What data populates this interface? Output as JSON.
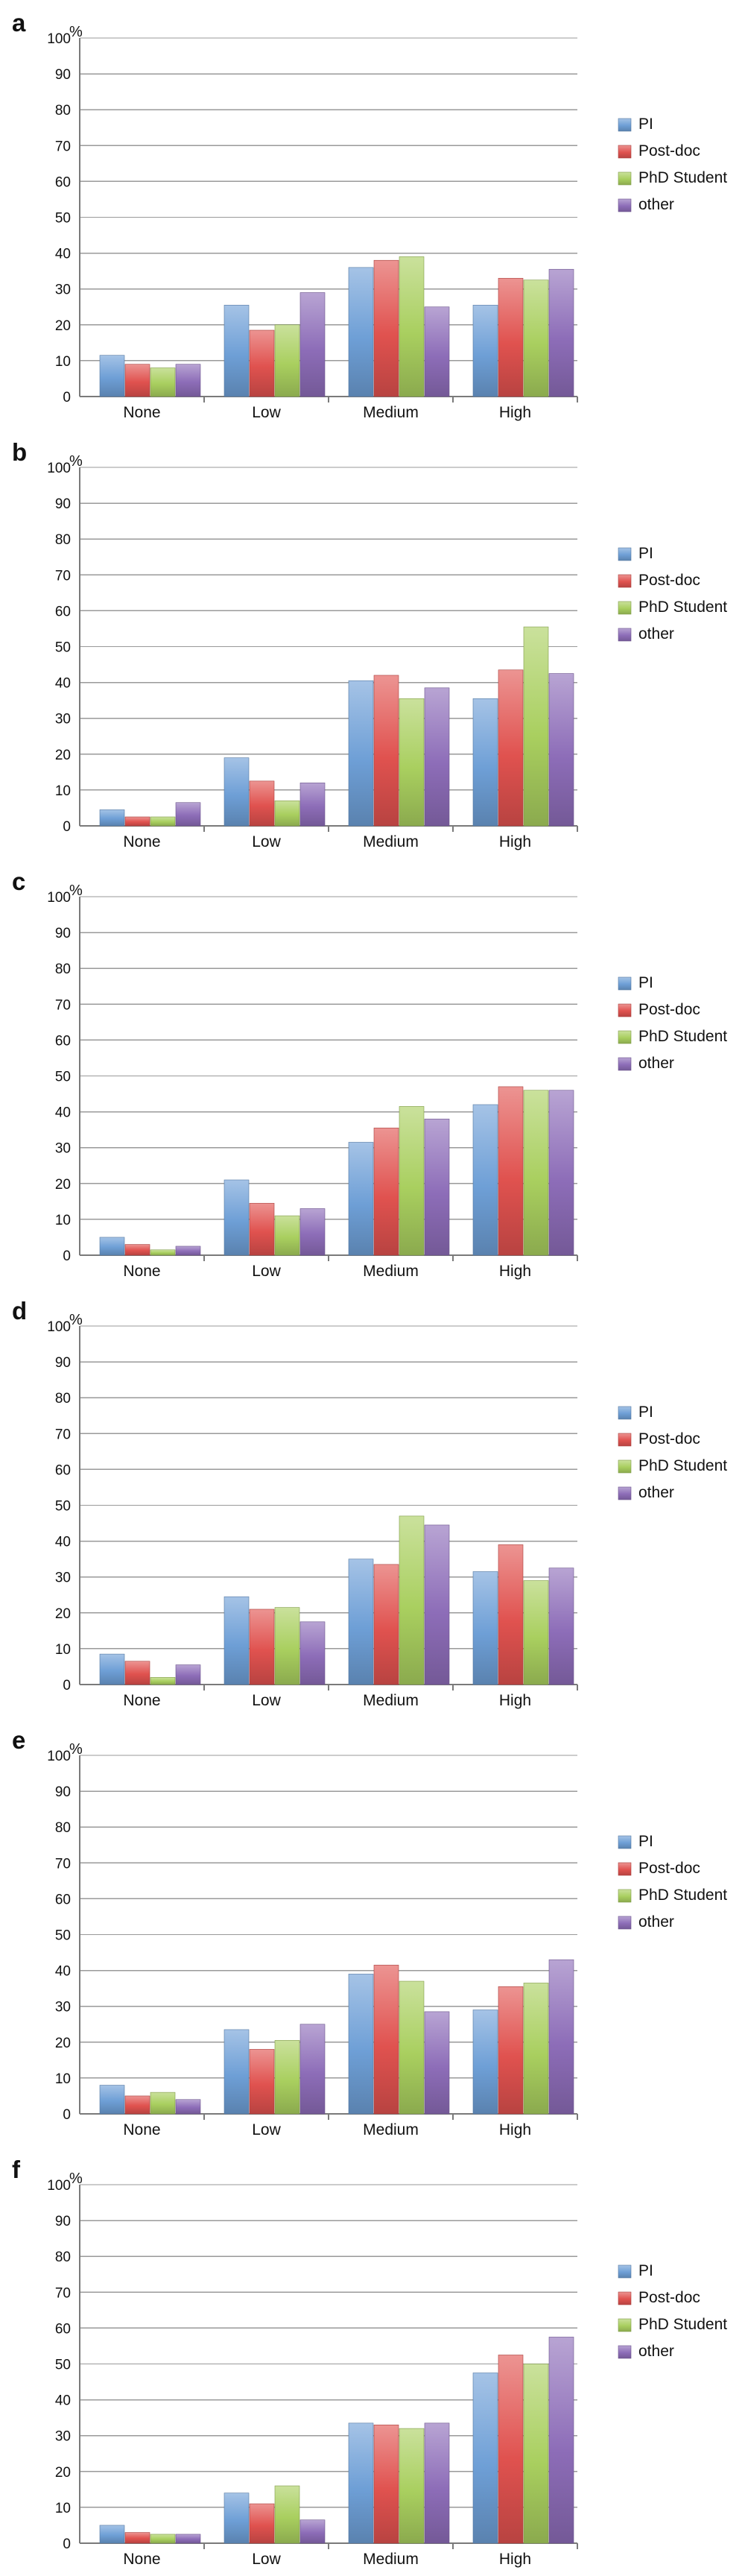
{
  "legend": {
    "placement": "right",
    "entries": [
      "PI",
      "Post-doc",
      "PhD Student",
      "other"
    ]
  },
  "series_colors": {
    "PI": "#6e9fd6",
    "Post-doc": "#e0524f",
    "PhD Student": "#a9cf5f",
    "other": "#8d6db8"
  },
  "y_unit": "%",
  "chart_data": [
    {
      "panel": "a",
      "type": "bar",
      "categories": [
        "None",
        "Low",
        "Medium",
        "High"
      ],
      "ylim": [
        0,
        100
      ],
      "yticks": [
        0,
        10,
        20,
        30,
        40,
        50,
        60,
        70,
        80,
        90,
        100
      ],
      "grid": true,
      "series": [
        {
          "name": "PI",
          "values": [
            11.5,
            25.5,
            36,
            25.5
          ]
        },
        {
          "name": "Post-doc",
          "values": [
            9,
            18.5,
            38,
            33
          ]
        },
        {
          "name": "PhD Student",
          "values": [
            8,
            20,
            39,
            32.5
          ]
        },
        {
          "name": "other",
          "values": [
            9,
            29,
            25,
            35.5
          ]
        }
      ]
    },
    {
      "panel": "b",
      "type": "bar",
      "categories": [
        "None",
        "Low",
        "Medium",
        "High"
      ],
      "ylim": [
        0,
        100
      ],
      "yticks": [
        0,
        10,
        20,
        30,
        40,
        50,
        60,
        70,
        80,
        90,
        100
      ],
      "grid": true,
      "series": [
        {
          "name": "PI",
          "values": [
            4.5,
            19,
            40.5,
            35.5
          ]
        },
        {
          "name": "Post-doc",
          "values": [
            2.5,
            12.5,
            42,
            43.5
          ]
        },
        {
          "name": "PhD Student",
          "values": [
            2.5,
            7,
            35.5,
            55.5
          ]
        },
        {
          "name": "other",
          "values": [
            6.5,
            12,
            38.5,
            42.5
          ]
        }
      ]
    },
    {
      "panel": "c",
      "type": "bar",
      "categories": [
        "None",
        "Low",
        "Medium",
        "High"
      ],
      "ylim": [
        0,
        100
      ],
      "yticks": [
        0,
        10,
        20,
        30,
        40,
        50,
        60,
        70,
        80,
        90,
        100
      ],
      "grid": true,
      "series": [
        {
          "name": "PI",
          "values": [
            5,
            21,
            31.5,
            42
          ]
        },
        {
          "name": "Post-doc",
          "values": [
            3,
            14.5,
            35.5,
            47
          ]
        },
        {
          "name": "PhD Student",
          "values": [
            1.5,
            11,
            41.5,
            46
          ]
        },
        {
          "name": "other",
          "values": [
            2.5,
            13,
            38,
            46
          ]
        }
      ]
    },
    {
      "panel": "d",
      "type": "bar",
      "categories": [
        "None",
        "Low",
        "Medium",
        "High"
      ],
      "ylim": [
        0,
        100
      ],
      "yticks": [
        0,
        10,
        20,
        30,
        40,
        50,
        60,
        70,
        80,
        90,
        100
      ],
      "grid": true,
      "series": [
        {
          "name": "PI",
          "values": [
            8.5,
            24.5,
            35,
            31.5
          ]
        },
        {
          "name": "Post-doc",
          "values": [
            6.5,
            21,
            33.5,
            39
          ]
        },
        {
          "name": "PhD Student",
          "values": [
            2,
            21.5,
            47,
            29
          ]
        },
        {
          "name": "other",
          "values": [
            5.5,
            17.5,
            44.5,
            32.5
          ]
        }
      ]
    },
    {
      "panel": "e",
      "type": "bar",
      "categories": [
        "None",
        "Low",
        "Medium",
        "High"
      ],
      "ylim": [
        0,
        100
      ],
      "yticks": [
        0,
        10,
        20,
        30,
        40,
        50,
        60,
        70,
        80,
        90,
        100
      ],
      "grid": true,
      "series": [
        {
          "name": "PI",
          "values": [
            8,
            23.5,
            39,
            29
          ]
        },
        {
          "name": "Post-doc",
          "values": [
            5,
            18,
            41.5,
            35.5
          ]
        },
        {
          "name": "PhD Student",
          "values": [
            6,
            20.5,
            37,
            36.5
          ]
        },
        {
          "name": "other",
          "values": [
            4,
            25,
            28.5,
            43
          ]
        }
      ]
    },
    {
      "panel": "f",
      "type": "bar",
      "categories": [
        "None",
        "Low",
        "Medium",
        "High"
      ],
      "ylim": [
        0,
        100
      ],
      "yticks": [
        0,
        10,
        20,
        30,
        40,
        50,
        60,
        70,
        80,
        90,
        100
      ],
      "grid": true,
      "series": [
        {
          "name": "PI",
          "values": [
            5,
            14,
            33.5,
            47.5
          ]
        },
        {
          "name": "Post-doc",
          "values": [
            3,
            11,
            33,
            52.5
          ]
        },
        {
          "name": "PhD Student",
          "values": [
            2.5,
            16,
            32,
            50
          ]
        },
        {
          "name": "other",
          "values": [
            2.5,
            6.5,
            33.5,
            57.5
          ]
        }
      ]
    }
  ]
}
